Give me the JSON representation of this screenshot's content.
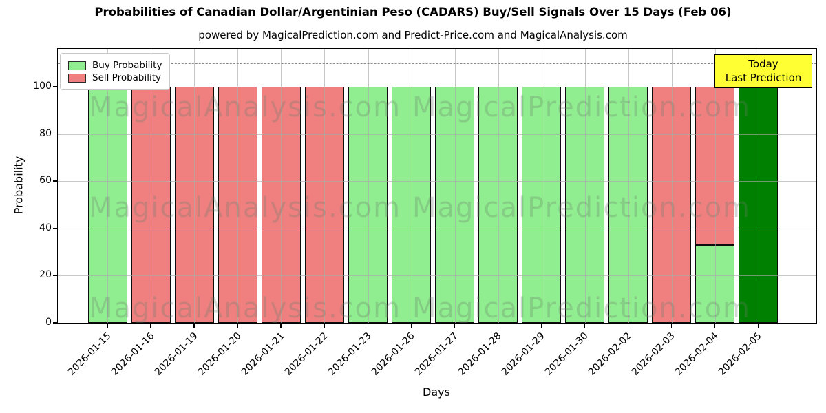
{
  "header": {
    "title": "Probabilities of Canadian Dollar/Argentinian Peso (CADARS) Buy/Sell Signals Over 15 Days (Feb 06)",
    "subtitle": "powered by MagicalPrediction.com and Predict-Price.com and MagicalAnalysis.com"
  },
  "legend": {
    "items": [
      {
        "label": "Buy Probability",
        "color": "#90ee90"
      },
      {
        "label": "Sell Probability",
        "color": "#f08080"
      }
    ]
  },
  "annotation": {
    "line1": "Today",
    "line2": "Last Prediction",
    "bg": "#ffff33"
  },
  "watermarks": {
    "left": "MagicalAnalysis.com",
    "right": "MagicalPrediction.com"
  },
  "chart_data": {
    "type": "bar",
    "stacked": true,
    "title": "Probabilities of Canadian Dollar/Argentinian Peso (CADARS) Buy/Sell Signals Over 15 Days (Feb 06)",
    "xlabel": "Days",
    "ylabel": "Probability",
    "categories": [
      "2026-01-15",
      "2026-01-16",
      "2026-01-19",
      "2026-01-20",
      "2026-01-21",
      "2026-01-22",
      "2026-01-23",
      "2026-01-26",
      "2026-01-27",
      "2026-01-28",
      "2026-01-29",
      "2026-01-30",
      "2026-02-02",
      "2026-02-03",
      "2026-02-04",
      "2026-02-05"
    ],
    "series": [
      {
        "name": "Buy Probability",
        "color": "#90ee90",
        "values": [
          100,
          0,
          0,
          0,
          0,
          0,
          100,
          100,
          100,
          100,
          100,
          100,
          100,
          0,
          33,
          0
        ]
      },
      {
        "name": "Sell Probability",
        "color": "#f08080",
        "values": [
          0,
          100,
          100,
          100,
          100,
          100,
          0,
          0,
          0,
          0,
          0,
          0,
          0,
          100,
          67,
          0
        ]
      },
      {
        "name": "Last Prediction (today)",
        "color": "#008000",
        "values": [
          0,
          0,
          0,
          0,
          0,
          0,
          0,
          0,
          0,
          0,
          0,
          0,
          0,
          0,
          0,
          100
        ]
      }
    ],
    "ylim": [
      0,
      116
    ],
    "yticks": [
      0,
      20,
      40,
      60,
      80,
      100
    ],
    "threshold_line": {
      "y": 110,
      "style": "dashed",
      "color": "#8a8a8a"
    },
    "grid": true,
    "legend_position": "upper left"
  }
}
